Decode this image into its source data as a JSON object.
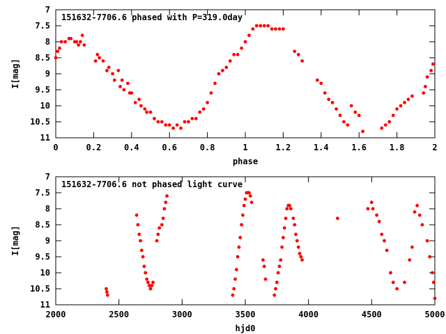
{
  "chart_data": [
    {
      "type": "scatter",
      "title": "151632-7706.6 phased with P=319.0day",
      "xlabel": "phase",
      "ylabel": "I[mag]",
      "xlim": [
        0,
        2
      ],
      "ylim": [
        11,
        7
      ],
      "y_inverted": true,
      "xticks": [
        0,
        0.2,
        0.4,
        0.6,
        0.8,
        1,
        1.2,
        1.4,
        1.6,
        1.8,
        2
      ],
      "xtick_labels": [
        "0",
        "0.2",
        "0.4",
        "0.6",
        "0.8",
        "1",
        "1.2",
        "1.4",
        "1.6",
        "1.8",
        "2"
      ],
      "yticks": [
        7,
        7.5,
        8,
        8.5,
        9,
        9.5,
        10,
        10.5,
        11
      ],
      "ytick_labels": [
        "7",
        "7.5",
        "8",
        "8.5",
        "9",
        "9.5",
        "10",
        "10.5",
        "11"
      ],
      "grid": false,
      "marker_color": "#ff0000",
      "series": [
        {
          "x": [
            0.0,
            0.01,
            0.02,
            0.03,
            0.05,
            0.07,
            0.08,
            0.1,
            0.11,
            0.12,
            0.13,
            0.14,
            0.15,
            0.21,
            0.22,
            0.23,
            0.25,
            0.27,
            0.28,
            0.3,
            0.31,
            0.33,
            0.34,
            0.35,
            0.36,
            0.38,
            0.39,
            0.4,
            0.42,
            0.44,
            0.45,
            0.47,
            0.48,
            0.5,
            0.52,
            0.54,
            0.56,
            0.58,
            0.6,
            0.62,
            0.64,
            0.66,
            0.68,
            0.7,
            0.72,
            0.74,
            0.76,
            0.78,
            0.8,
            0.82,
            0.84,
            0.86,
            0.88,
            0.9,
            0.92,
            0.94,
            0.96,
            0.98,
            1.0,
            1.02,
            1.04,
            1.06,
            1.08,
            1.1,
            1.12,
            1.14,
            1.16,
            1.18,
            1.2,
            1.26,
            1.28,
            1.3,
            1.38,
            1.4,
            1.42,
            1.44,
            1.46,
            1.48,
            1.5,
            1.52,
            1.54,
            1.56,
            1.58,
            1.6,
            1.62,
            1.72,
            1.74,
            1.76,
            1.78,
            1.8,
            1.82,
            1.84,
            1.86,
            1.88,
            1.94,
            1.95,
            1.96,
            1.98,
            1.99
          ],
          "y": [
            8.5,
            8.3,
            8.2,
            8.0,
            8.0,
            7.9,
            7.9,
            8.0,
            8.0,
            8.1,
            8.0,
            7.8,
            8.1,
            8.6,
            8.4,
            8.5,
            8.6,
            8.9,
            8.8,
            9.0,
            9.2,
            8.9,
            9.4,
            9.2,
            9.5,
            9.3,
            9.6,
            9.6,
            9.9,
            9.8,
            10.0,
            10.1,
            10.2,
            10.2,
            10.4,
            10.5,
            10.5,
            10.6,
            10.6,
            10.7,
            10.6,
            10.7,
            10.5,
            10.5,
            10.4,
            10.4,
            10.2,
            10.1,
            9.9,
            9.6,
            9.3,
            9.0,
            8.9,
            8.8,
            8.6,
            8.4,
            8.4,
            8.2,
            8.0,
            7.8,
            7.6,
            7.5,
            7.5,
            7.5,
            7.5,
            7.6,
            7.6,
            7.6,
            7.6,
            8.3,
            8.4,
            8.6,
            9.2,
            9.3,
            9.6,
            9.8,
            9.9,
            10.1,
            10.3,
            10.5,
            10.6,
            10.0,
            10.2,
            10.3,
            10.8,
            10.7,
            10.6,
            10.5,
            10.3,
            10.1,
            10.0,
            9.9,
            9.8,
            9.7,
            9.6,
            9.4,
            9.1,
            8.9,
            8.7
          ]
        }
      ]
    },
    {
      "type": "scatter",
      "title": "151632-7706.6 not phased light curve",
      "xlabel": "hjd0",
      "ylabel": "I[mag]",
      "xlim": [
        2000,
        5000
      ],
      "ylim": [
        11,
        7
      ],
      "y_inverted": true,
      "xticks": [
        2000,
        2500,
        3000,
        3500,
        4000,
        4500,
        5000
      ],
      "xtick_labels": [
        "2000",
        "2500",
        "3000",
        "3500",
        "4000",
        "4500",
        "5000"
      ],
      "yticks": [
        7,
        7.5,
        8,
        8.5,
        9,
        9.5,
        10,
        10.5,
        11
      ],
      "ytick_labels": [
        "7",
        "7.5",
        "8",
        "8.5",
        "9",
        "9.5",
        "10",
        "10.5",
        "11"
      ],
      "grid": false,
      "marker_color": "#ff0000",
      "series": [
        {
          "x": [
            2400,
            2405,
            2410,
            2640,
            2650,
            2660,
            2670,
            2680,
            2690,
            2700,
            2710,
            2720,
            2730,
            2740,
            2750,
            2760,
            2770,
            2800,
            2810,
            2820,
            2840,
            2850,
            2860,
            2870,
            2880,
            3400,
            3410,
            3420,
            3430,
            3440,
            3450,
            3460,
            3470,
            3480,
            3490,
            3500,
            3510,
            3520,
            3530,
            3540,
            3550,
            3640,
            3650,
            3660,
            3730,
            3740,
            3750,
            3760,
            3770,
            3780,
            3790,
            3800,
            3810,
            3820,
            3830,
            3840,
            3850,
            3860,
            3880,
            3890,
            3900,
            3910,
            3920,
            3930,
            3940,
            3950,
            4230,
            4470,
            4500,
            4510,
            4540,
            4560,
            4580,
            4600,
            4620,
            4650,
            4670,
            4700,
            4760,
            4800,
            4820,
            4840,
            4860,
            4880,
            4900,
            4940,
            4960,
            4980,
            4990,
            5000
          ],
          "y": [
            10.5,
            10.6,
            10.7,
            8.2,
            8.5,
            8.8,
            9.0,
            9.3,
            9.5,
            9.8,
            10.0,
            10.2,
            10.3,
            10.4,
            10.5,
            10.4,
            10.3,
            9.0,
            8.8,
            8.6,
            8.5,
            8.3,
            8.0,
            7.8,
            7.6,
            10.7,
            10.5,
            10.2,
            9.9,
            9.5,
            9.2,
            8.9,
            8.5,
            8.2,
            7.9,
            7.7,
            7.5,
            7.5,
            7.5,
            7.6,
            7.8,
            9.6,
            9.8,
            10.2,
            10.7,
            10.5,
            10.3,
            10.0,
            9.8,
            9.6,
            9.2,
            8.9,
            8.6,
            8.3,
            8.0,
            7.9,
            7.9,
            8.0,
            8.3,
            8.5,
            8.8,
            9.0,
            9.2,
            9.4,
            9.5,
            9.6,
            8.3,
            8.0,
            7.8,
            8.0,
            8.2,
            8.4,
            8.8,
            9.0,
            9.3,
            10.0,
            10.3,
            10.5,
            10.3,
            9.6,
            9.2,
            8.1,
            7.9,
            8.2,
            8.5,
            9.0,
            9.5,
            10.0,
            10.3,
            10.8
          ]
        }
      ]
    }
  ]
}
